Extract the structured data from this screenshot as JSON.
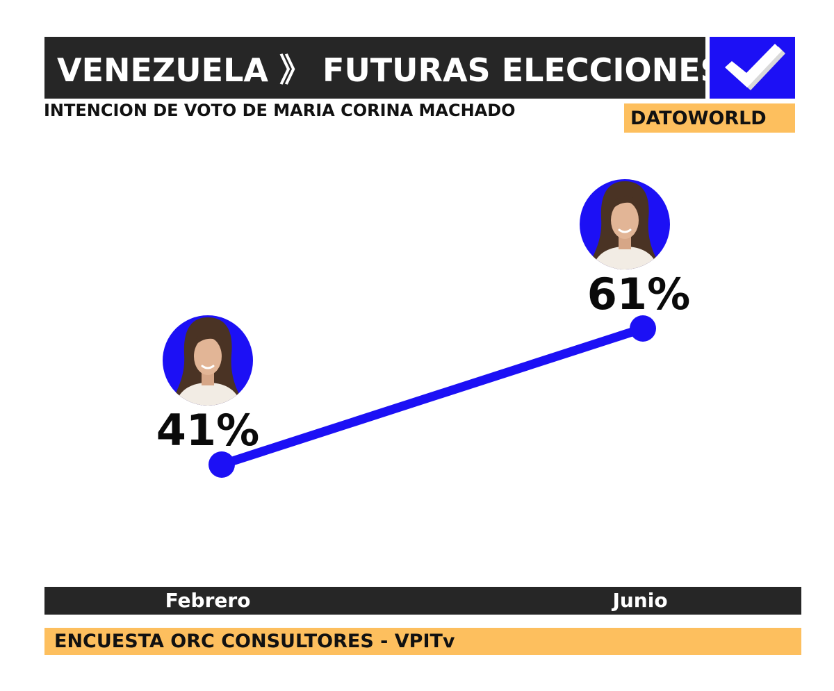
{
  "header": {
    "title": "VENEZUELA 》 FUTURAS ELECCIONES",
    "subtitle": "INTENCION DE VOTO DE MARIA CORINA MACHADO",
    "brand": "DATOWORLD",
    "check_icon": "checkmark-icon"
  },
  "footer": {
    "source": "ENCUESTA ORC CONSULTORES - VPITv"
  },
  "colors": {
    "line": "#1c10f5",
    "dark_bar": "#262626",
    "accent_orange": "#fdbf5e",
    "check_bg": "#1c10f5"
  },
  "chart_data": {
    "type": "line",
    "title": "INTENCION DE VOTO DE MARIA CORINA MACHADO",
    "categories": [
      "Febrero",
      "Junio"
    ],
    "series": [
      {
        "values": [
          41,
          61
        ],
        "labels": [
          "41%",
          "61%"
        ]
      }
    ],
    "unit": "%",
    "grid": false,
    "legend": "none"
  }
}
